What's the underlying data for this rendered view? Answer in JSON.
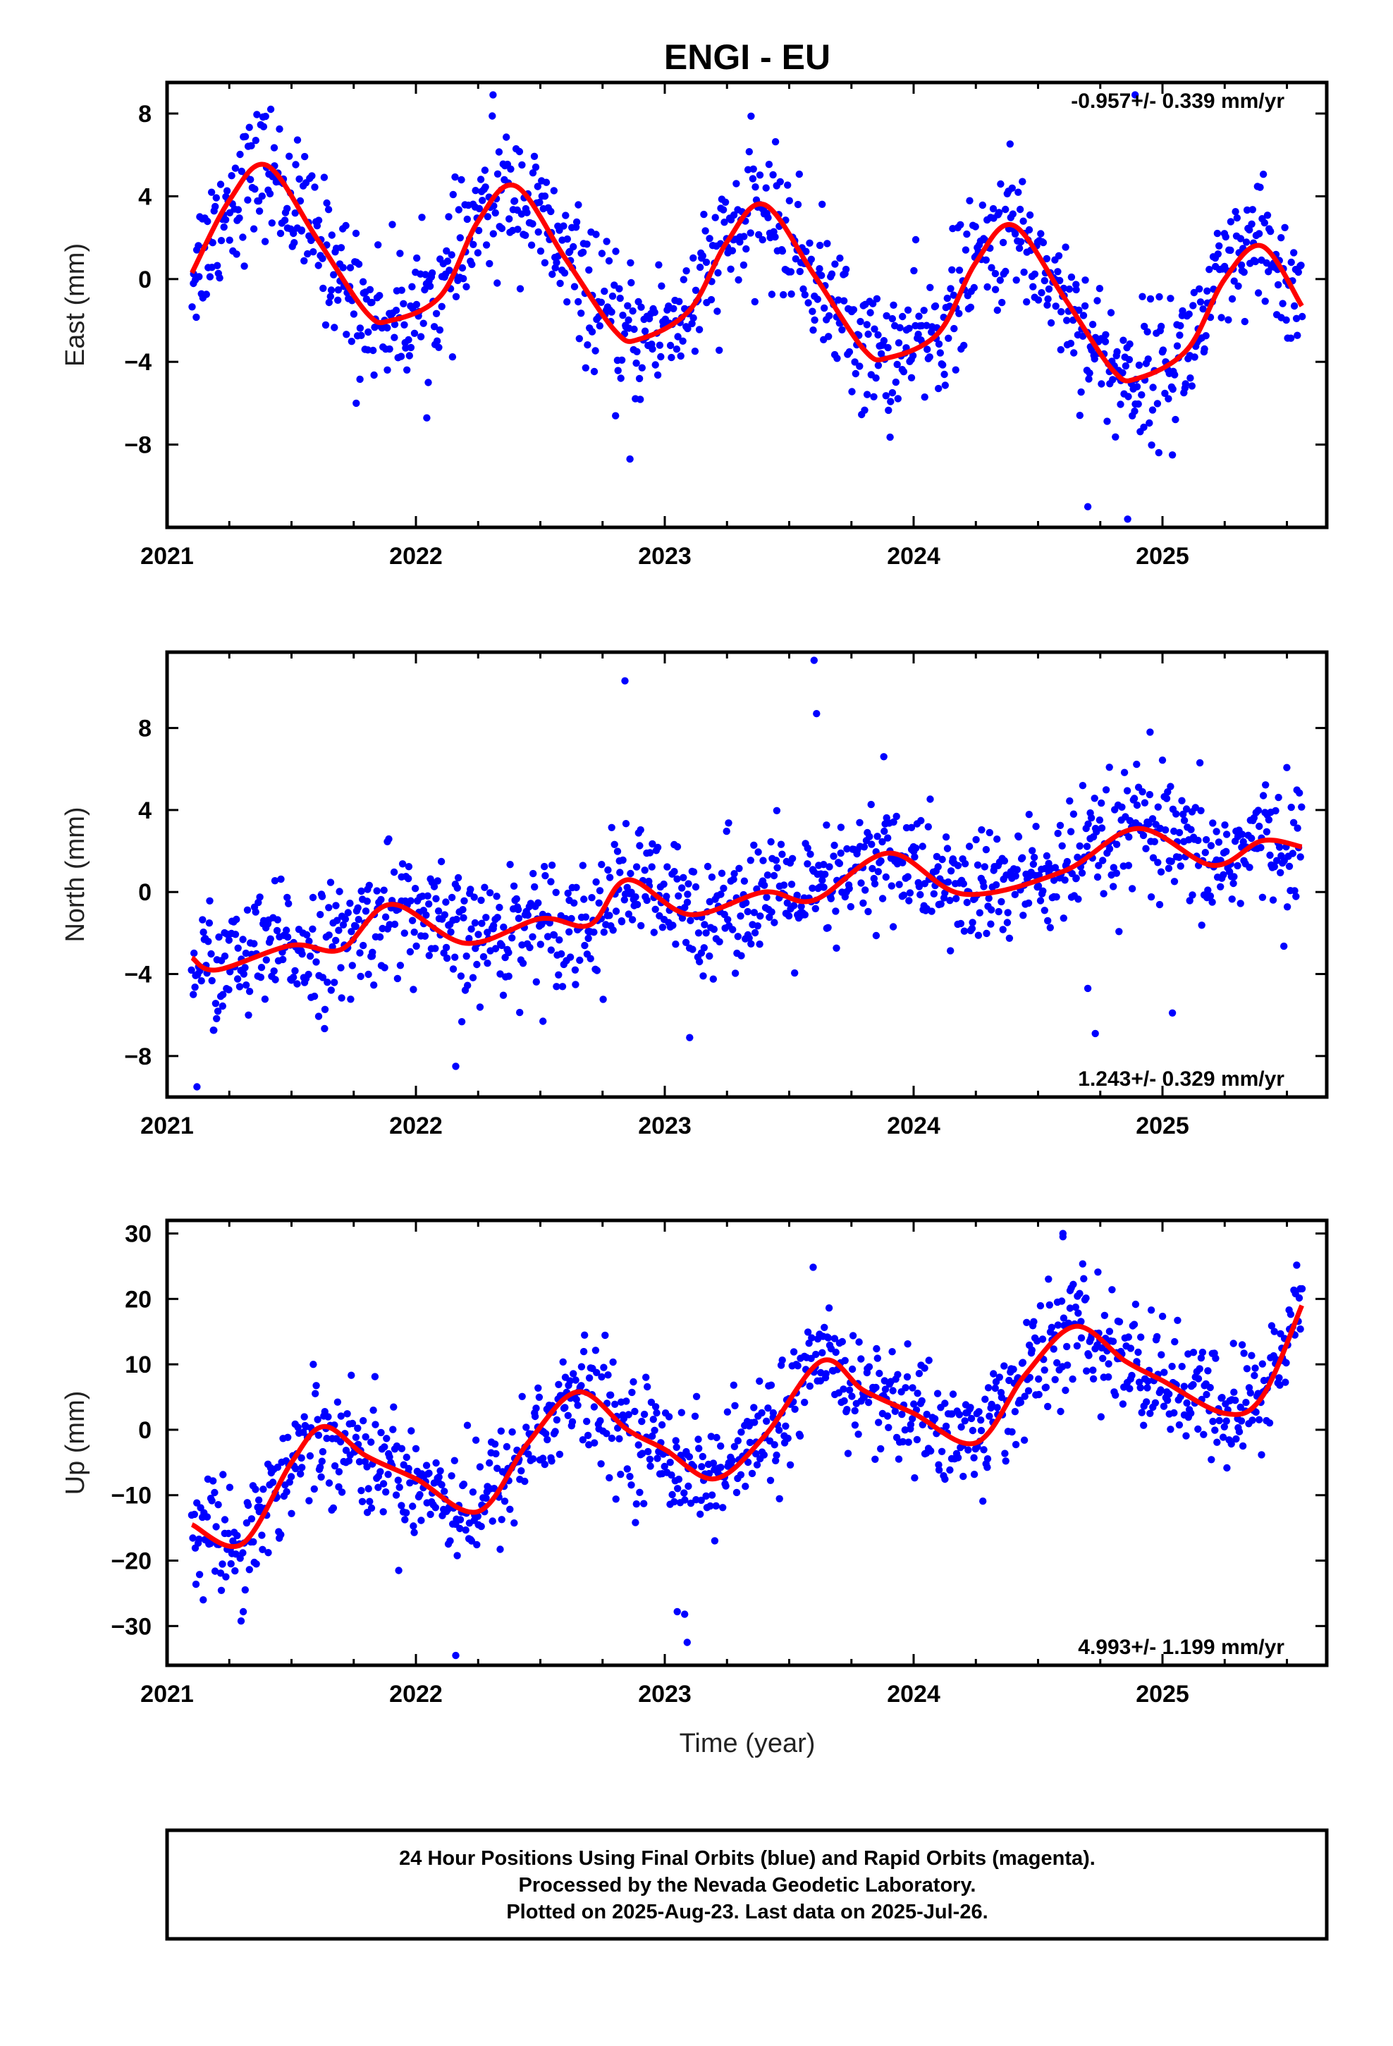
{
  "title": "ENGI - EU",
  "colors": {
    "points": "#0000ff",
    "fit": "#ff0000",
    "frame": "#000000"
  },
  "xlabel": "Time (year)",
  "footer": [
    "24 Hour Positions Using Final Orbits (blue) and Rapid Orbits (magenta).",
    "Processed by the Nevada Geodetic Laboratory.",
    "Plotted on 2025-Aug-23. Last data on 2025-Jul-26."
  ],
  "chart_data": [
    {
      "type": "scatter",
      "component": "east",
      "ylabel": "East (mm)",
      "rate_label": "-0.957+/- 0.339 mm/yr",
      "xlim": [
        2021.0,
        2025.66
      ],
      "ylim": [
        -12,
        9.5
      ],
      "xticks": [
        2021,
        2022,
        2023,
        2024,
        2025
      ],
      "yticks": [
        -8,
        -4,
        0,
        4,
        8
      ],
      "model": {
        "rate": -0.957,
        "annual_amp": 3.7,
        "peak_phase": 0.39,
        "offset": 1.6
      },
      "series": [
        {
          "name": "fit",
          "x": [
            2021.1,
            2021.25,
            2021.4,
            2021.6,
            2021.8,
            2021.9,
            2022.1,
            2022.25,
            2022.4,
            2022.6,
            2022.8,
            2022.9,
            2023.1,
            2023.25,
            2023.4,
            2023.6,
            2023.8,
            2023.9,
            2024.1,
            2024.25,
            2024.4,
            2024.6,
            2024.8,
            2024.9,
            2025.1,
            2025.25,
            2025.4,
            2025.56
          ],
          "y": [
            0.3,
            3.8,
            5.5,
            2.0,
            -1.6,
            -2.0,
            -0.8,
            2.8,
            4.5,
            1.0,
            -2.5,
            -2.9,
            -1.5,
            1.8,
            3.6,
            0.2,
            -3.4,
            -3.8,
            -2.6,
            0.8,
            2.6,
            -0.8,
            -4.4,
            -4.8,
            -3.4,
            0.0,
            1.6,
            -1.3
          ]
        },
        {
          "name": "outliers",
          "x": [
            2021.76,
            2022.86,
            2024.7,
            2024.86,
            2024.89,
            2025.04,
            2022.31
          ],
          "y": [
            -6.0,
            -8.7,
            -11.0,
            -11.6,
            8.9,
            -8.5,
            8.9
          ]
        }
      ]
    },
    {
      "type": "scatter",
      "component": "north",
      "ylabel": "North (mm)",
      "rate_label": "1.243+/- 0.329 mm/yr",
      "xlim": [
        2021.0,
        2025.66
      ],
      "ylim": [
        -10,
        11.7
      ],
      "xticks": [
        2021,
        2022,
        2023,
        2024,
        2025
      ],
      "yticks": [
        -8,
        -4,
        0,
        4,
        8
      ],
      "model": {
        "rate": 1.243,
        "annual_amp": 0.9,
        "peak_phase": 0.95,
        "offset": -3.2
      },
      "series": [
        {
          "name": "fit",
          "x": [
            2021.1,
            2021.2,
            2021.5,
            2021.7,
            2021.9,
            2022.2,
            2022.5,
            2022.7,
            2022.85,
            2023.1,
            2023.4,
            2023.6,
            2023.9,
            2024.2,
            2024.6,
            2024.9,
            2025.2,
            2025.4,
            2025.56
          ],
          "y": [
            -3.2,
            -3.8,
            -2.6,
            -2.8,
            -0.6,
            -2.5,
            -1.3,
            -1.6,
            0.6,
            -1.1,
            0.0,
            -0.4,
            1.9,
            -0.1,
            1.0,
            3.1,
            1.3,
            2.5,
            2.2
          ]
        },
        {
          "name": "outliers",
          "x": [
            2022.84,
            2023.6,
            2023.61,
            2023.88,
            2024.7,
            2024.73,
            2025.04,
            2021.12,
            2022.16,
            2023.1,
            2024.95
          ],
          "y": [
            10.3,
            11.3,
            8.7,
            6.6,
            -4.7,
            -6.9,
            -5.9,
            -9.5,
            -8.5,
            -7.1,
            7.8
          ]
        }
      ]
    },
    {
      "type": "scatter",
      "component": "up",
      "ylabel": "Up (mm)",
      "rate_label": "4.993+/- 1.199 mm/yr",
      "xlim": [
        2021.0,
        2025.66
      ],
      "ylim": [
        -36,
        32
      ],
      "xticks": [
        2021,
        2022,
        2023,
        2024,
        2025
      ],
      "yticks": [
        -30,
        -20,
        -10,
        0,
        10,
        20,
        30
      ],
      "model": {
        "rate": 4.993,
        "annual_amp": 7,
        "peak_phase": 0.63,
        "offset": -15
      },
      "series": [
        {
          "name": "fit",
          "x": [
            2021.1,
            2021.3,
            2021.5,
            2021.63,
            2021.8,
            2022.0,
            2022.25,
            2022.45,
            2022.65,
            2022.85,
            2023.0,
            2023.2,
            2023.4,
            2023.63,
            2023.8,
            2024.0,
            2024.25,
            2024.45,
            2024.65,
            2024.85,
            2025.0,
            2025.25,
            2025.4,
            2025.56
          ],
          "y": [
            -14.5,
            -17.5,
            -5.0,
            0.5,
            -4.0,
            -7.5,
            -12.5,
            -2.0,
            5.8,
            0.0,
            -3.0,
            -7.5,
            -1.0,
            10.5,
            6.0,
            2.5,
            -2.0,
            8.5,
            15.8,
            10.5,
            7.5,
            2.5,
            5.0,
            19.0
          ]
        },
        {
          "name": "outliers",
          "x": [
            2022.16,
            2023.05,
            2023.08,
            2023.09,
            2024.6,
            2024.6
          ],
          "y": [
            -34.5,
            -27.8,
            -28.2,
            -32.5,
            30.0,
            29.5
          ]
        }
      ]
    }
  ]
}
